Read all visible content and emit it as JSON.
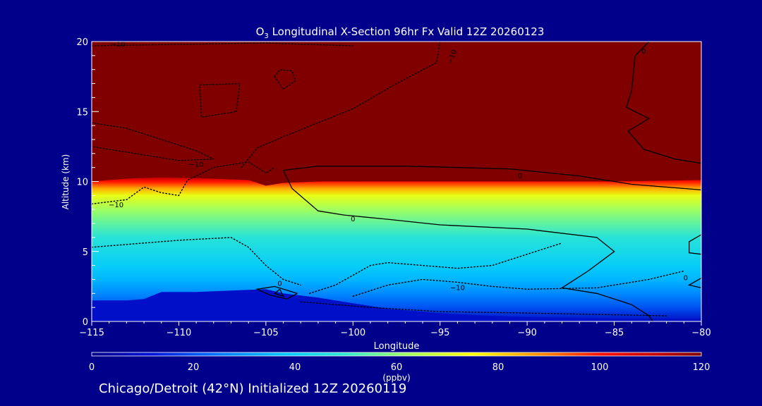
{
  "chart_data": {
    "type": "heatmap",
    "title_prefix": "O",
    "title_subscript": "3",
    "title_rest": " Longitudinal X-Section 96hr  Fx Valid 12Z 20260123",
    "xlabel": "Longitude",
    "ylabel": "Altitude (km)",
    "xlim": [
      -115,
      -80
    ],
    "ylim": [
      0,
      20
    ],
    "x_ticks": [
      -115,
      -110,
      -105,
      -100,
      -95,
      -90,
      -85,
      -80
    ],
    "x_tick_labels": [
      "−115",
      "−110",
      "−105",
      "−100",
      "−95",
      "−90",
      "−85",
      "−80"
    ],
    "y_ticks": [
      0,
      5,
      10,
      15,
      20
    ],
    "y_tick_labels": [
      "0",
      "5",
      "10",
      "15",
      "20"
    ],
    "colorbar": {
      "min": 0,
      "max": 120,
      "ticks": [
        0,
        20,
        40,
        60,
        80,
        100,
        120
      ],
      "tick_labels": [
        "0",
        "20",
        "40",
        "60",
        "80",
        "100",
        "120"
      ],
      "label": "(ppbv)"
    },
    "color_stops": [
      {
        "v": 0,
        "c": "#00008a"
      },
      {
        "v": 12,
        "c": "#0014dc"
      },
      {
        "v": 25,
        "c": "#0078ff"
      },
      {
        "v": 38,
        "c": "#00c8ff"
      },
      {
        "v": 50,
        "c": "#30e8d0"
      },
      {
        "v": 62,
        "c": "#a0ff60"
      },
      {
        "v": 75,
        "c": "#ffff00"
      },
      {
        "v": 88,
        "c": "#ff9000"
      },
      {
        "v": 100,
        "c": "#ff1000"
      },
      {
        "v": 112,
        "c": "#c00000"
      },
      {
        "v": 120,
        "c": "#800000"
      }
    ],
    "surface_terrain": [
      [
        -115,
        1.5
      ],
      [
        -113,
        1.5
      ],
      [
        -112,
        1.6
      ],
      [
        -111,
        2.1
      ],
      [
        -109,
        2.1
      ],
      [
        -107,
        2.2
      ],
      [
        -105,
        2.3
      ],
      [
        -104,
        2.0
      ],
      [
        -102,
        1.7
      ],
      [
        -100,
        1.3
      ],
      [
        -98,
        0.9
      ],
      [
        -95,
        0.6
      ],
      [
        -92,
        0.4
      ],
      [
        -90,
        0.3
      ],
      [
        -85,
        0.2
      ],
      [
        -80,
        0.2
      ]
    ],
    "tropopause_km": [
      [
        -115,
        10.0
      ],
      [
        -113,
        10.2
      ],
      [
        -111,
        10.3
      ],
      [
        -108,
        10.2
      ],
      [
        -106,
        10.1
      ],
      [
        -105,
        9.7
      ],
      [
        -104,
        9.9
      ],
      [
        -102,
        10.0
      ],
      [
        -100,
        10.0
      ],
      [
        -95,
        10.0
      ],
      [
        -90,
        10.0
      ],
      [
        -85,
        10.0
      ],
      [
        -80,
        10.1
      ]
    ],
    "difference_contours": [
      {
        "value": -10,
        "style": "dotted",
        "points": [
          [
            -115,
            5.3
          ],
          [
            -112,
            5.6
          ],
          [
            -110,
            5.8
          ],
          [
            -107,
            6.0
          ],
          [
            -106,
            5.3
          ],
          [
            -105,
            4.0
          ],
          [
            -104,
            3.0
          ],
          [
            -103,
            2.6
          ]
        ]
      },
      {
        "value": -10,
        "style": "dotted",
        "points": [
          [
            -102.5,
            2.0
          ],
          [
            -101,
            2.6
          ],
          [
            -100,
            3.3
          ],
          [
            -99,
            4.0
          ],
          [
            -98,
            4.2
          ],
          [
            -96,
            4.0
          ],
          [
            -94,
            3.8
          ],
          [
            -92,
            4.0
          ],
          [
            -90,
            4.8
          ],
          [
            -88,
            5.6
          ]
        ]
      },
      {
        "value": -10,
        "style": "dotted",
        "points": [
          [
            -100,
            1.8
          ],
          [
            -98,
            2.6
          ],
          [
            -96,
            3.0
          ],
          [
            -94,
            2.8
          ],
          [
            -92,
            2.5
          ],
          [
            -90,
            2.3
          ],
          [
            -86,
            2.4
          ],
          [
            -83,
            3.0
          ],
          [
            -81,
            3.6
          ]
        ]
      },
      {
        "value": -10,
        "style": "dotted",
        "points": [
          [
            -115,
            8.4
          ],
          [
            -113,
            8.7
          ],
          [
            -112,
            9.6
          ],
          [
            -111,
            9.2
          ],
          [
            -110,
            9.0
          ],
          [
            -109.5,
            10.1
          ],
          [
            -108,
            11.0
          ],
          [
            -106,
            11.4
          ],
          [
            -105,
            10.6
          ],
          [
            -104.5,
            11.0
          ]
        ]
      },
      {
        "value": -10,
        "style": "dotted",
        "points": [
          [
            -115,
            14.2
          ],
          [
            -113,
            13.8
          ],
          [
            -111,
            13.0
          ],
          [
            -109,
            12.2
          ],
          [
            -108,
            11.6
          ],
          [
            -110,
            11.5
          ],
          [
            -112,
            11.9
          ],
          [
            -115,
            12.5
          ]
        ]
      },
      {
        "value": -10,
        "style": "dotted",
        "points": [
          [
            -106.7,
            15.0
          ],
          [
            -106.5,
            17.0
          ],
          [
            -108.8,
            16.9
          ],
          [
            -108.7,
            14.6
          ],
          [
            -106.7,
            15.0
          ]
        ]
      },
      {
        "value": -10,
        "style": "dotted",
        "points": [
          [
            -104.5,
            17.5
          ],
          [
            -104.2,
            18.0
          ],
          [
            -103.5,
            17.9
          ],
          [
            -103.3,
            17.2
          ],
          [
            -104.0,
            16.6
          ],
          [
            -104.5,
            17.5
          ]
        ]
      },
      {
        "value": -10,
        "style": "dotted",
        "points": [
          [
            -115,
            19.7
          ],
          [
            -110,
            19.8
          ],
          [
            -105,
            19.9
          ],
          [
            -100,
            19.7
          ]
        ]
      },
      {
        "value": -10,
        "style": "dotted",
        "points": [
          [
            -95,
            20.0
          ],
          [
            -95.2,
            18.5
          ],
          [
            -97.5,
            17.0
          ],
          [
            -100,
            15.2
          ],
          [
            -102,
            14.2
          ],
          [
            -104,
            13.2
          ],
          [
            -105.5,
            12.4
          ],
          [
            -106.4,
            11.0
          ]
        ]
      },
      {
        "value": -10,
        "style": "dotted",
        "points": [
          [
            -103,
            1.4
          ],
          [
            -99,
            1.0
          ],
          [
            -95,
            0.7
          ],
          [
            -90,
            0.6
          ],
          [
            -86,
            0.5
          ],
          [
            -82,
            0.4
          ]
        ]
      },
      {
        "value": 0,
        "style": "solid",
        "points": [
          [
            -83.0,
            20.0
          ],
          [
            -83.8,
            19.0
          ],
          [
            -84.0,
            16.5
          ],
          [
            -84.3,
            15.3
          ],
          [
            -83.0,
            14.5
          ],
          [
            -84.2,
            13.6
          ],
          [
            -83.3,
            12.3
          ],
          [
            -81.5,
            11.6
          ],
          [
            -80,
            11.3
          ]
        ]
      },
      {
        "value": 0,
        "style": "solid",
        "points": [
          [
            -104.0,
            10.8
          ],
          [
            -102.0,
            11.1
          ],
          [
            -97.0,
            11.1
          ],
          [
            -91.0,
            10.9
          ],
          [
            -87.0,
            10.4
          ],
          [
            -84.0,
            9.8
          ],
          [
            -80.0,
            9.4
          ]
        ]
      },
      {
        "value": 0,
        "style": "solid",
        "points": [
          [
            -104.0,
            10.8
          ],
          [
            -103.5,
            9.5
          ],
          [
            -102.0,
            7.9
          ],
          [
            -100.5,
            7.6
          ],
          [
            -98.0,
            7.3
          ],
          [
            -95.0,
            6.9
          ],
          [
            -90.0,
            6.6
          ],
          [
            -86.0,
            6.0
          ],
          [
            -85.0,
            5.0
          ],
          [
            -86.5,
            3.6
          ],
          [
            -88.0,
            2.4
          ],
          [
            -86.0,
            2.0
          ],
          [
            -84.0,
            1.2
          ],
          [
            -83.0,
            0.4
          ],
          [
            -82.8,
            0.0
          ]
        ]
      },
      {
        "value": 0,
        "style": "solid",
        "points": [
          [
            -103.2,
            2.0
          ],
          [
            -104.5,
            2.5
          ],
          [
            -105.5,
            2.3
          ],
          [
            -104.8,
            1.9
          ],
          [
            -103.8,
            1.6
          ],
          [
            -103.2,
            2.0
          ]
        ]
      },
      {
        "value": 0,
        "style": "solid",
        "points": [
          [
            -104.2,
            2.3
          ],
          [
            -104.0,
            1.8
          ],
          [
            -104.5,
            2.0
          ],
          [
            -104.2,
            2.3
          ]
        ]
      },
      {
        "value": 0,
        "style": "solid",
        "points": [
          [
            -80,
            6.2
          ],
          [
            -80.7,
            5.7
          ],
          [
            -80.7,
            4.9
          ],
          [
            -80,
            4.8
          ]
        ]
      },
      {
        "value": 0,
        "style": "solid",
        "points": [
          [
            -80,
            3.1
          ],
          [
            -80.7,
            2.6
          ],
          [
            -80,
            2.4
          ]
        ]
      }
    ],
    "contour_labels": [
      {
        "text": "−10",
        "x": -113.5,
        "y": 19.8
      },
      {
        "text": "−10",
        "x": -109,
        "y": 11.2
      },
      {
        "text": "−10",
        "x": -113.6,
        "y": 8.3
      },
      {
        "text": "−10",
        "x": -94,
        "y": 2.4
      },
      {
        "text": "−10",
        "x": -94.3,
        "y": 18.9,
        "rotate": -70
      },
      {
        "text": "0",
        "x": -83.3,
        "y": 19.3
      },
      {
        "text": "0",
        "x": -90.4,
        "y": 10.4
      },
      {
        "text": "0",
        "x": -100,
        "y": 7.3
      },
      {
        "text": "0",
        "x": -104.2,
        "y": 2.7
      },
      {
        "text": "0",
        "x": -80.9,
        "y": 3.1
      }
    ]
  },
  "footer": "Chicago/Detroit (42°N) Initialized 12Z 20260119"
}
